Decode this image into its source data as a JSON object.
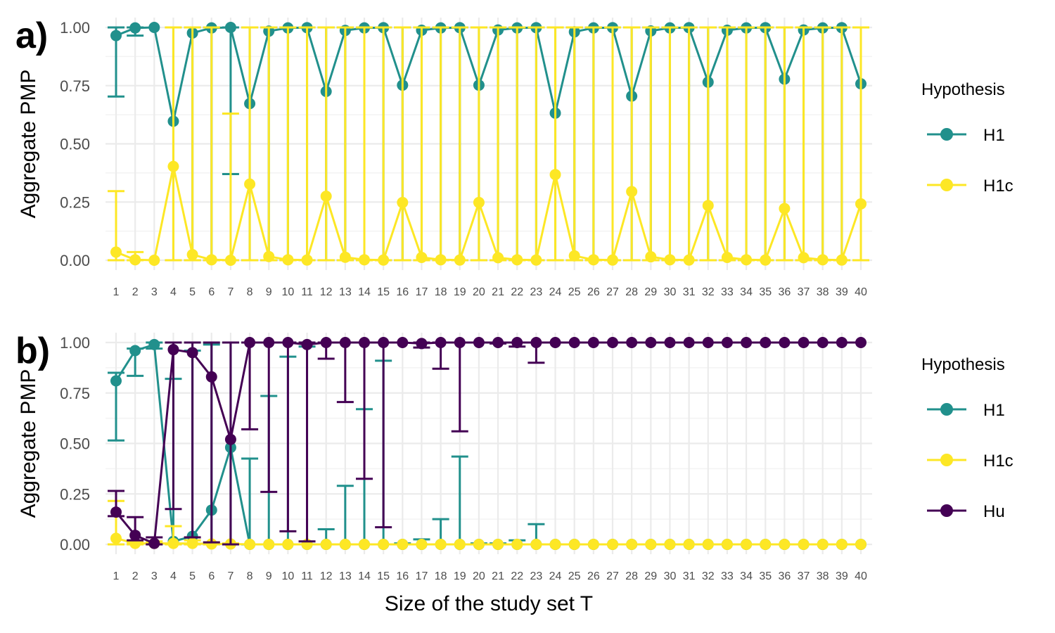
{
  "figure": {
    "x_axis_title": "Size of the study set T"
  },
  "colors": {
    "H1": "#21908C",
    "H1c": "#FDE725",
    "Hu": "#440154",
    "grid_major": "#EBEBEB",
    "grid_minor": "#F3F3F3"
  },
  "chart_data": [
    {
      "panel_label": "a)",
      "type": "line",
      "ylabel": "Aggregate PMP",
      "xlabel": "",
      "y_ticks": [
        "0.00",
        "0.25",
        "0.50",
        "0.75",
        "1.00"
      ],
      "ylim": [
        0,
        1
      ],
      "x": [
        1,
        2,
        3,
        4,
        5,
        6,
        7,
        8,
        9,
        10,
        11,
        12,
        13,
        14,
        15,
        16,
        17,
        18,
        19,
        20,
        21,
        22,
        23,
        24,
        25,
        26,
        27,
        28,
        29,
        30,
        31,
        32,
        33,
        34,
        35,
        36,
        37,
        38,
        39,
        40
      ],
      "grid": true,
      "legend": {
        "title": "Hypothesis",
        "position": "right",
        "entries": [
          "H1",
          "H1c"
        ]
      },
      "series": [
        {
          "name": "H1",
          "values": [
            0.965,
            0.998,
            1.0,
            0.597,
            0.976,
            0.998,
            1.0,
            0.673,
            0.984,
            0.998,
            0.999,
            0.725,
            0.987,
            0.998,
            0.999,
            0.752,
            0.988,
            0.998,
            0.999,
            0.752,
            0.989,
            0.998,
            0.999,
            0.632,
            0.981,
            0.998,
            0.999,
            0.705,
            0.985,
            0.998,
            0.999,
            0.765,
            0.988,
            0.998,
            0.999,
            0.778,
            0.989,
            0.998,
            0.999,
            0.758
          ],
          "lower": [
            0.703,
            0.965,
            1.0,
            0.0,
            0.0,
            0.0,
            0.37,
            0.0,
            0.0,
            0.0,
            0.0,
            0.0,
            0.0,
            0.0,
            0.0,
            0.0,
            0.0,
            0.0,
            0.0,
            0.0,
            0.0,
            0.0,
            0.0,
            0.0,
            0.0,
            0.0,
            0.0,
            0.0,
            0.0,
            0.0,
            0.0,
            0.0,
            0.0,
            0.0,
            0.0,
            0.0,
            0.0,
            0.0,
            0.0,
            0.0
          ],
          "upper": [
            1.0,
            1.0,
            1.0,
            1.0,
            1.0,
            1.0,
            1.0,
            1.0,
            1.0,
            1.0,
            1.0,
            1.0,
            1.0,
            1.0,
            1.0,
            1.0,
            1.0,
            1.0,
            1.0,
            1.0,
            1.0,
            1.0,
            1.0,
            1.0,
            1.0,
            1.0,
            1.0,
            1.0,
            1.0,
            1.0,
            1.0,
            1.0,
            1.0,
            1.0,
            1.0,
            1.0,
            1.0,
            1.0,
            1.0,
            1.0
          ]
        },
        {
          "name": "H1c",
          "values": [
            0.035,
            0.002,
            0.0,
            0.403,
            0.024,
            0.002,
            0.0,
            0.327,
            0.016,
            0.002,
            0.001,
            0.275,
            0.013,
            0.002,
            0.001,
            0.248,
            0.012,
            0.002,
            0.001,
            0.248,
            0.011,
            0.002,
            0.001,
            0.368,
            0.019,
            0.002,
            0.001,
            0.295,
            0.015,
            0.002,
            0.001,
            0.235,
            0.012,
            0.002,
            0.001,
            0.222,
            0.011,
            0.002,
            0.001,
            0.242
          ],
          "lower": [
            0.0,
            0.0,
            0.0,
            0.0,
            0.0,
            0.0,
            0.0,
            0.0,
            0.0,
            0.0,
            0.0,
            0.0,
            0.0,
            0.0,
            0.0,
            0.0,
            0.0,
            0.0,
            0.0,
            0.0,
            0.0,
            0.0,
            0.0,
            0.0,
            0.0,
            0.0,
            0.0,
            0.0,
            0.0,
            0.0,
            0.0,
            0.0,
            0.0,
            0.0,
            0.0,
            0.0,
            0.0,
            0.0,
            0.0,
            0.0
          ],
          "upper": [
            0.297,
            0.035,
            0.0,
            1.0,
            1.0,
            1.0,
            0.63,
            1.0,
            1.0,
            1.0,
            1.0,
            1.0,
            1.0,
            1.0,
            1.0,
            1.0,
            1.0,
            1.0,
            1.0,
            1.0,
            1.0,
            1.0,
            1.0,
            1.0,
            1.0,
            1.0,
            1.0,
            1.0,
            1.0,
            1.0,
            1.0,
            1.0,
            1.0,
            1.0,
            1.0,
            1.0,
            1.0,
            1.0,
            1.0,
            1.0
          ]
        }
      ]
    },
    {
      "panel_label": "b)",
      "type": "line",
      "ylabel": "Aggregate PMP",
      "xlabel": "Size of the study set T",
      "y_ticks": [
        "0.00",
        "0.25",
        "0.50",
        "0.75",
        "1.00"
      ],
      "ylim": [
        0,
        1
      ],
      "x": [
        1,
        2,
        3,
        4,
        5,
        6,
        7,
        8,
        9,
        10,
        11,
        12,
        13,
        14,
        15,
        16,
        17,
        18,
        19,
        20,
        21,
        22,
        23,
        24,
        25,
        26,
        27,
        28,
        29,
        30,
        31,
        32,
        33,
        34,
        35,
        36,
        37,
        38,
        39,
        40
      ],
      "grid": true,
      "legend": {
        "title": "Hypothesis",
        "position": "right",
        "entries": [
          "H1",
          "H1c",
          "Hu"
        ]
      },
      "series": [
        {
          "name": "H1",
          "values": [
            0.81,
            0.96,
            0.99,
            0.015,
            0.04,
            0.17,
            0.48,
            0.0,
            0.0,
            0.0,
            0.0,
            0.0,
            0.0,
            0.0,
            0.0,
            0.0,
            0.0,
            0.0,
            0.0,
            0.0,
            0.0,
            0.0,
            0.0,
            0.0,
            0.0,
            0.0,
            0.0,
            0.0,
            0.0,
            0.0,
            0.0,
            0.0,
            0.0,
            0.0,
            0.0,
            0.0,
            0.0,
            0.0,
            0.0,
            0.0
          ],
          "lower": [
            0.515,
            0.835,
            0.97,
            0.0,
            0.0,
            0.0,
            0.0,
            0.0,
            0.0,
            0.0,
            0.0,
            0.0,
            0.0,
            0.0,
            0.0,
            0.0,
            0.0,
            0.0,
            0.0,
            0.0,
            0.0,
            0.0,
            0.0,
            0.0,
            0.0,
            0.0,
            0.0,
            0.0,
            0.0,
            0.0,
            0.0,
            0.0,
            0.0,
            0.0,
            0.0,
            0.0,
            0.0,
            0.0,
            0.0,
            0.0
          ],
          "upper": [
            0.85,
            0.97,
            1.0,
            0.82,
            0.96,
            0.99,
            1.0,
            0.425,
            0.735,
            0.93,
            0.98,
            0.075,
            0.29,
            0.67,
            0.91,
            0.005,
            0.025,
            0.125,
            0.435,
            0.005,
            0.005,
            0.02,
            0.1,
            0.0,
            0.0,
            0.0,
            0.0,
            0.0,
            0.0,
            0.0,
            0.0,
            0.0,
            0.0,
            0.0,
            0.0,
            0.0,
            0.0,
            0.0,
            0.0,
            0.0
          ]
        },
        {
          "name": "H1c",
          "values": [
            0.03,
            0.005,
            0.005,
            0.005,
            0.005,
            0.002,
            0.002,
            0.0,
            0.0,
            0.0,
            0.0,
            0.0,
            0.0,
            0.0,
            0.0,
            0.0,
            0.0,
            0.0,
            0.0,
            0.0,
            0.0,
            0.0,
            0.0,
            0.0,
            0.0,
            0.0,
            0.0,
            0.0,
            0.0,
            0.0,
            0.0,
            0.0,
            0.0,
            0.0,
            0.0,
            0.0,
            0.0,
            0.0,
            0.0,
            0.0
          ],
          "lower": [
            0.0,
            0.0,
            0.0,
            0.0,
            0.0,
            0.0,
            0.0,
            0.0,
            0.0,
            0.0,
            0.0,
            0.0,
            0.0,
            0.0,
            0.0,
            0.0,
            0.0,
            0.0,
            0.0,
            0.0,
            0.0,
            0.0,
            0.0,
            0.0,
            0.0,
            0.0,
            0.0,
            0.0,
            0.0,
            0.0,
            0.0,
            0.0,
            0.0,
            0.0,
            0.0,
            0.0,
            0.0,
            0.0,
            0.0,
            0.0
          ],
          "upper": [
            0.215,
            0.01,
            0.015,
            0.09,
            0.02,
            0.01,
            0.005,
            0.0,
            0.0,
            0.0,
            0.0,
            0.0,
            0.0,
            0.0,
            0.0,
            0.0,
            0.0,
            0.0,
            0.0,
            0.0,
            0.0,
            0.0,
            0.0,
            0.0,
            0.0,
            0.0,
            0.0,
            0.0,
            0.0,
            0.0,
            0.0,
            0.0,
            0.0,
            0.0,
            0.0,
            0.0,
            0.0,
            0.0,
            0.0,
            0.0
          ]
        },
        {
          "name": "Hu",
          "values": [
            0.16,
            0.045,
            0.005,
            0.965,
            0.95,
            0.83,
            0.52,
            1.0,
            1.0,
            1.0,
            0.99,
            1.0,
            1.0,
            1.0,
            1.0,
            1.0,
            0.995,
            1.0,
            1.0,
            1.0,
            1.0,
            1.0,
            1.0,
            1.0,
            1.0,
            1.0,
            1.0,
            1.0,
            1.0,
            1.0,
            1.0,
            1.0,
            1.0,
            1.0,
            1.0,
            1.0,
            1.0,
            1.0,
            1.0,
            1.0
          ],
          "lower": [
            0.14,
            0.02,
            0.0,
            0.175,
            0.035,
            0.01,
            0.0,
            0.57,
            0.26,
            0.065,
            0.015,
            0.92,
            0.705,
            0.325,
            0.085,
            1.0,
            0.975,
            0.87,
            0.56,
            1.0,
            0.995,
            0.98,
            0.9,
            1.0,
            1.0,
            1.0,
            1.0,
            1.0,
            1.0,
            1.0,
            1.0,
            1.0,
            1.0,
            1.0,
            1.0,
            1.0,
            1.0,
            1.0,
            1.0,
            1.0
          ],
          "upper": [
            0.265,
            0.135,
            0.035,
            1.0,
            1.0,
            1.0,
            1.0,
            1.0,
            1.0,
            1.0,
            1.0,
            1.0,
            1.0,
            1.0,
            1.0,
            1.0,
            1.0,
            1.0,
            1.0,
            1.0,
            1.0,
            1.0,
            1.0,
            1.0,
            1.0,
            1.0,
            1.0,
            1.0,
            1.0,
            1.0,
            1.0,
            1.0,
            1.0,
            1.0,
            1.0,
            1.0,
            1.0,
            1.0,
            1.0,
            1.0
          ]
        }
      ]
    }
  ]
}
